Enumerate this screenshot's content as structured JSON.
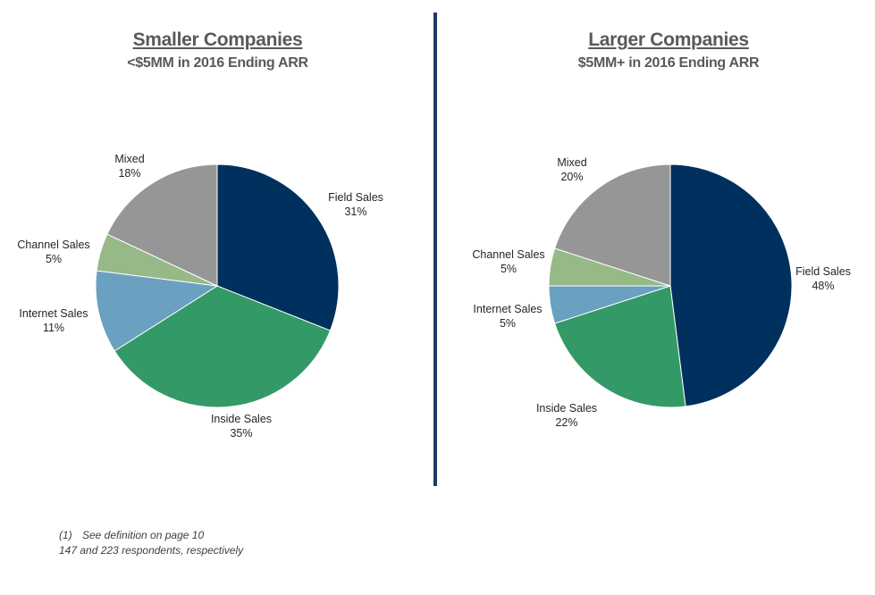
{
  "chart_data": [
    {
      "type": "pie",
      "title": "Smaller Companies",
      "subtitle": "<$5MM in 2016 Ending ARR",
      "slices": [
        {
          "label": "Field Sales",
          "value": 31,
          "display": "31%",
          "color": "#00305e"
        },
        {
          "label": "Inside Sales",
          "value": 35,
          "display": "35%",
          "color": "#339966"
        },
        {
          "label": "Internet Sales",
          "value": 11,
          "display": "11%",
          "color": "#6aa0c0"
        },
        {
          "label": "Channel Sales",
          "value": 5,
          "display": "5%",
          "color": "#96b987"
        },
        {
          "label": "Mixed",
          "value": 18,
          "display": "18%",
          "color": "#969696"
        }
      ]
    },
    {
      "type": "pie",
      "title": "Larger Companies",
      "subtitle": "$5MM+ in 2016 Ending ARR",
      "slices": [
        {
          "label": "Field Sales",
          "value": 48,
          "display": "48%",
          "color": "#00305e"
        },
        {
          "label": "Inside Sales",
          "value": 22,
          "display": "22%",
          "color": "#339966"
        },
        {
          "label": "Internet Sales",
          "value": 5,
          "display": "5%",
          "color": "#6aa0c0"
        },
        {
          "label": "Channel Sales",
          "value": 5,
          "display": "5%",
          "color": "#96b987"
        },
        {
          "label": "Mixed",
          "value": 20,
          "display": "20%",
          "color": "#969696"
        }
      ]
    }
  ],
  "footnotes": {
    "marker": "(1)",
    "line1": "See definition on page 10",
    "line2": "147 and 223 respondents, respectively"
  },
  "divider_color": "#1f3864"
}
